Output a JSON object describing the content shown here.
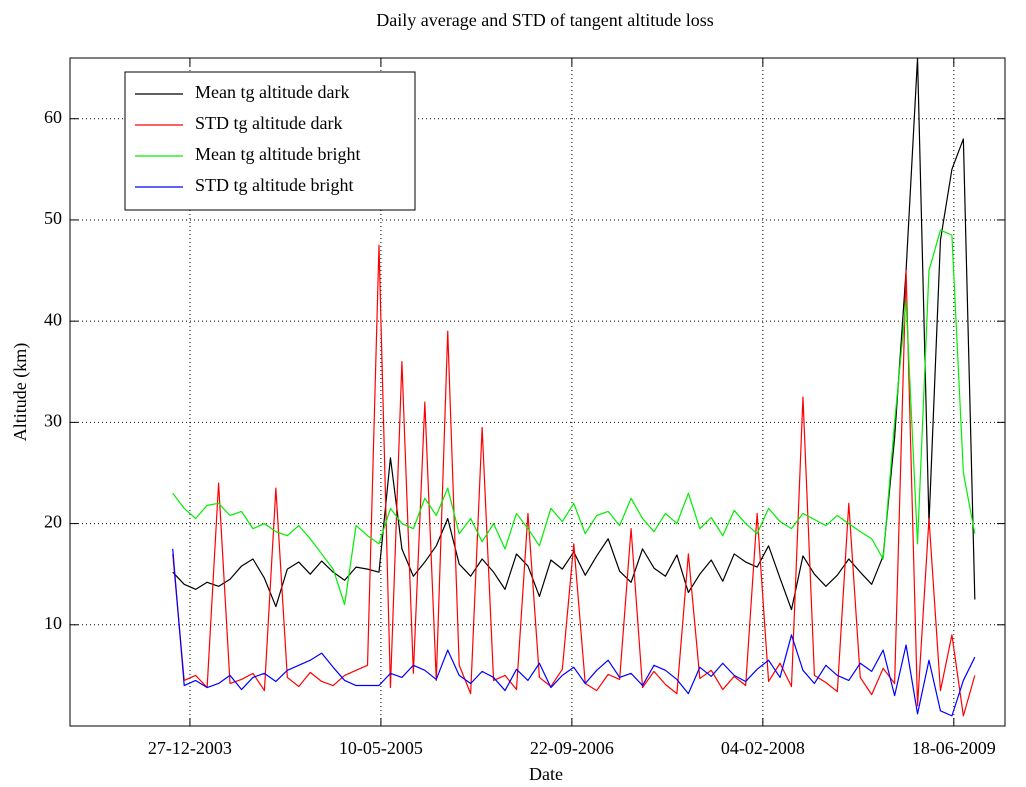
{
  "chart_data": {
    "type": "line",
    "title": "Daily average and STD of tangent altitude loss",
    "xlabel": "Date",
    "ylabel": "Altitude (km)",
    "x": [
      "2003-11-12",
      "2003-12-12",
      "2004-01-11",
      "2004-02-10",
      "2004-03-11",
      "2004-04-10",
      "2004-05-10",
      "2004-06-09",
      "2004-07-09",
      "2004-08-08",
      "2004-09-07",
      "2004-10-07",
      "2004-11-06",
      "2004-12-06",
      "2005-01-05",
      "2005-02-04",
      "2005-03-06",
      "2005-04-05",
      "2005-05-05",
      "2005-06-04",
      "2005-07-04",
      "2005-08-03",
      "2005-09-02",
      "2005-10-02",
      "2005-11-01",
      "2005-12-01",
      "2005-12-31",
      "2006-01-30",
      "2006-03-01",
      "2006-03-31",
      "2006-04-30",
      "2006-05-30",
      "2006-06-29",
      "2006-07-29",
      "2006-08-28",
      "2006-09-27",
      "2006-10-27",
      "2006-11-26",
      "2006-12-26",
      "2007-01-25",
      "2007-02-24",
      "2007-03-26",
      "2007-04-25",
      "2007-05-25",
      "2007-06-24",
      "2007-07-24",
      "2007-08-23",
      "2007-09-22",
      "2007-10-22",
      "2007-11-21",
      "2007-12-21",
      "2008-01-20",
      "2008-02-19",
      "2008-03-20",
      "2008-04-19",
      "2008-05-19",
      "2008-06-18",
      "2008-07-18",
      "2008-08-17",
      "2008-09-16",
      "2008-10-16",
      "2008-11-15",
      "2008-12-15",
      "2009-01-14",
      "2009-02-13",
      "2009-03-15",
      "2009-04-14",
      "2009-05-14",
      "2009-06-13",
      "2009-07-13",
      "2009-08-12"
    ],
    "series": [
      {
        "name": "Mean tg altitude dark",
        "color": "#000000",
        "values": [
          15.2,
          14.0,
          13.5,
          14.2,
          13.8,
          14.5,
          15.8,
          16.5,
          14.6,
          11.8,
          15.5,
          16.2,
          15.0,
          16.3,
          15.2,
          14.4,
          15.7,
          15.5,
          15.2,
          26.5,
          17.5,
          14.8,
          16.2,
          17.8,
          20.5,
          16.0,
          14.8,
          16.5,
          15.2,
          13.5,
          17.0,
          15.8,
          12.8,
          16.4,
          15.5,
          17.2,
          14.9,
          16.8,
          18.5,
          15.3,
          14.2,
          17.5,
          15.6,
          14.8,
          16.9,
          13.2,
          15.0,
          16.4,
          14.3,
          17.0,
          16.2,
          15.7,
          17.8,
          14.6,
          11.5,
          16.8,
          15.0,
          13.8,
          14.9,
          16.5,
          15.2,
          14.0,
          16.8,
          28.5,
          45.0,
          66.0,
          20.0,
          48.0,
          55.0,
          58.0,
          12.5
        ]
      },
      {
        "name": "STD tg altitude dark",
        "color": "#ff0000",
        "values": [
          17.0,
          4.5,
          5.0,
          3.8,
          24.0,
          4.2,
          4.6,
          5.2,
          3.5,
          23.5,
          4.8,
          3.9,
          5.3,
          4.4,
          4.0,
          5.0,
          5.5,
          6.0,
          47.5,
          3.8,
          36.0,
          5.2,
          32.0,
          4.5,
          39.0,
          6.0,
          3.2,
          29.5,
          4.5,
          5.0,
          3.6,
          21.0,
          4.8,
          3.9,
          5.6,
          18.0,
          4.2,
          3.5,
          5.1,
          4.6,
          19.5,
          3.8,
          5.4,
          4.1,
          3.2,
          17.0,
          4.7,
          5.5,
          3.6,
          4.9,
          4.0,
          21.0,
          4.4,
          6.2,
          3.9,
          32.5,
          5.0,
          4.3,
          3.4,
          22.0,
          4.8,
          3.1,
          5.7,
          4.2,
          45.0,
          2.0,
          20.5,
          3.5,
          9.0,
          1.0,
          5.0
        ]
      },
      {
        "name": "Mean tg altitude bright",
        "color": "#00ee00",
        "values": [
          23.0,
          21.5,
          20.5,
          21.8,
          22.0,
          20.8,
          21.2,
          19.5,
          20.0,
          19.2,
          18.8,
          19.8,
          18.5,
          17.0,
          15.5,
          12.0,
          19.8,
          18.8,
          18.0,
          21.5,
          20.0,
          19.5,
          22.5,
          20.8,
          23.5,
          19.0,
          20.5,
          18.2,
          20.0,
          17.5,
          21.0,
          19.5,
          17.8,
          21.5,
          20.2,
          22.0,
          19.0,
          20.8,
          21.2,
          19.8,
          22.5,
          20.5,
          19.2,
          21.0,
          20.0,
          23.0,
          19.5,
          20.6,
          18.8,
          21.3,
          20.0,
          19.0,
          21.5,
          20.2,
          19.5,
          21.0,
          20.4,
          19.8,
          20.8,
          20.0,
          19.2,
          18.5,
          16.5,
          30.0,
          42.0,
          18.0,
          45.0,
          49.0,
          48.5,
          25.0,
          19.0
        ]
      },
      {
        "name": "STD tg altitude bright",
        "color": "#0000ff",
        "values": [
          17.5,
          4.0,
          4.5,
          3.8,
          4.2,
          5.0,
          3.6,
          4.8,
          5.2,
          4.4,
          5.5,
          6.0,
          6.5,
          7.2,
          5.8,
          4.5,
          4.0,
          4.0,
          4.0,
          5.2,
          4.8,
          6.0,
          5.5,
          4.6,
          7.5,
          5.0,
          4.2,
          5.4,
          4.8,
          3.5,
          5.6,
          4.5,
          6.2,
          3.8,
          5.0,
          5.8,
          4.2,
          5.5,
          6.5,
          4.8,
          5.2,
          4.0,
          6.0,
          5.5,
          4.6,
          3.2,
          5.8,
          4.9,
          6.2,
          5.0,
          4.4,
          5.6,
          6.5,
          4.8,
          9.0,
          5.5,
          4.2,
          6.0,
          5.0,
          4.5,
          6.2,
          5.4,
          7.5,
          3.0,
          8.0,
          1.2,
          6.5,
          1.5,
          1.0,
          4.5,
          6.8
        ]
      }
    ],
    "xlim": [
      "2003-02-16",
      "2009-10-30"
    ],
    "xticks": [
      {
        "value": "2003-12-27",
        "label": "27-12-2003"
      },
      {
        "value": "2005-05-10",
        "label": "10-05-2005"
      },
      {
        "value": "2006-09-22",
        "label": "22-09-2006"
      },
      {
        "value": "2008-02-04",
        "label": "04-02-2008"
      },
      {
        "value": "2009-06-18",
        "label": "18-06-2009"
      }
    ],
    "ylim": [
      0,
      66
    ],
    "yticks": [
      10,
      20,
      30,
      40,
      50,
      60
    ],
    "grid": true,
    "legend": "upper-left"
  }
}
